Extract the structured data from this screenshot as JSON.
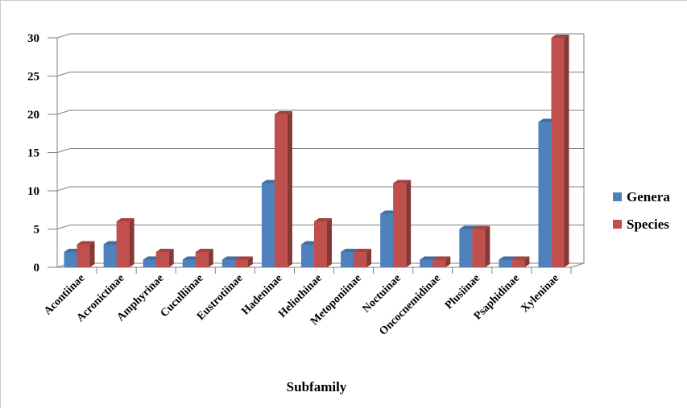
{
  "chart_data": {
    "type": "bar",
    "title": "",
    "xlabel": "Subfamily",
    "ylabel": "",
    "ylim": [
      0,
      30
    ],
    "yticks": [
      0,
      5,
      10,
      15,
      20,
      25,
      30
    ],
    "grid": true,
    "legend_position": "right",
    "categories": [
      "Acontiinae",
      "Acronictinae",
      "Amphyrinae",
      "Cuculliinae",
      "Eustrotiinae",
      "Hadeninae",
      "Heliothinae",
      "Metoponiinae",
      "Noctuinae",
      "Oncocnemidinae",
      "Plusiinae",
      "Psaphidinae",
      "Xyleninae"
    ],
    "series": [
      {
        "name": "Genera",
        "color": "#4f81bd",
        "values": [
          2,
          3,
          1,
          1,
          1,
          11,
          3,
          2,
          7,
          1,
          5,
          1,
          19
        ]
      },
      {
        "name": "Species",
        "color": "#c0504d",
        "values": [
          3,
          6,
          2,
          2,
          1,
          20,
          6,
          2,
          11,
          1,
          5,
          1,
          30
        ]
      }
    ]
  }
}
